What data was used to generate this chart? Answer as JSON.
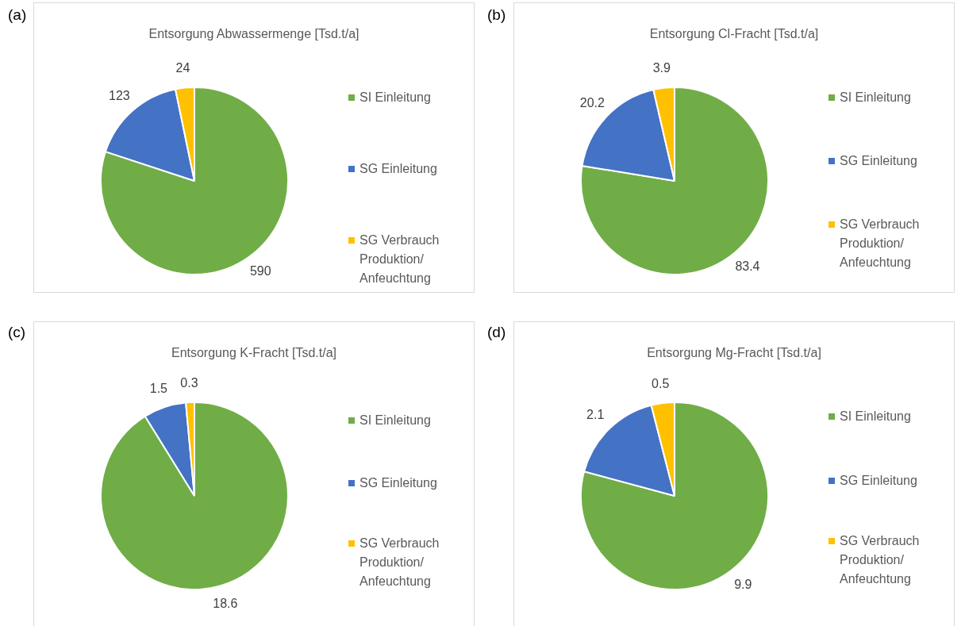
{
  "chart_data": [
    {
      "type": "pie",
      "title": "Entsorgung Abwassermenge [Tsd.t/a]",
      "categories": [
        "SI Einleitung",
        "SG Einleitung",
        "SG Verbrauch Produktion/ Anfeuchtung"
      ],
      "values": [
        590,
        123,
        24
      ],
      "colors": [
        "#70ad47",
        "#4472c4",
        "#ffc000"
      ],
      "data_labels": true,
      "legend": "right",
      "annotations": [
        "(a)"
      ]
    },
    {
      "type": "pie",
      "title": "Entsorgung Cl-Fracht [Tsd.t/a]",
      "categories": [
        "SI Einleitung",
        "SG Einleitung",
        "SG Verbrauch Produktion/ Anfeuchtung"
      ],
      "values": [
        83.4,
        20.2,
        3.9
      ],
      "colors": [
        "#70ad47",
        "#4472c4",
        "#ffc000"
      ],
      "data_labels": true,
      "legend": "right",
      "annotations": [
        "(b)"
      ]
    },
    {
      "type": "pie",
      "title": "Entsorgung K-Fracht [Tsd.t/a]",
      "categories": [
        "SI Einleitung",
        "SG Einleitung",
        "SG Verbrauch Produktion/ Anfeuchtung"
      ],
      "values": [
        18.6,
        1.5,
        0.3
      ],
      "colors": [
        "#70ad47",
        "#4472c4",
        "#ffc000"
      ],
      "data_labels": true,
      "legend": "right",
      "annotations": [
        "(c)"
      ]
    },
    {
      "type": "pie",
      "title": "Entsorgung Mg-Fracht [Tsd.t/a]",
      "categories": [
        "SI Einleitung",
        "SG Einleitung",
        "SG Verbrauch Produktion/ Anfeuchtung"
      ],
      "values": [
        9.9,
        2.1,
        0.5
      ],
      "colors": [
        "#70ad47",
        "#4472c4",
        "#ffc000"
      ],
      "data_labels": true,
      "legend": "right",
      "annotations": [
        "(d)"
      ]
    }
  ]
}
